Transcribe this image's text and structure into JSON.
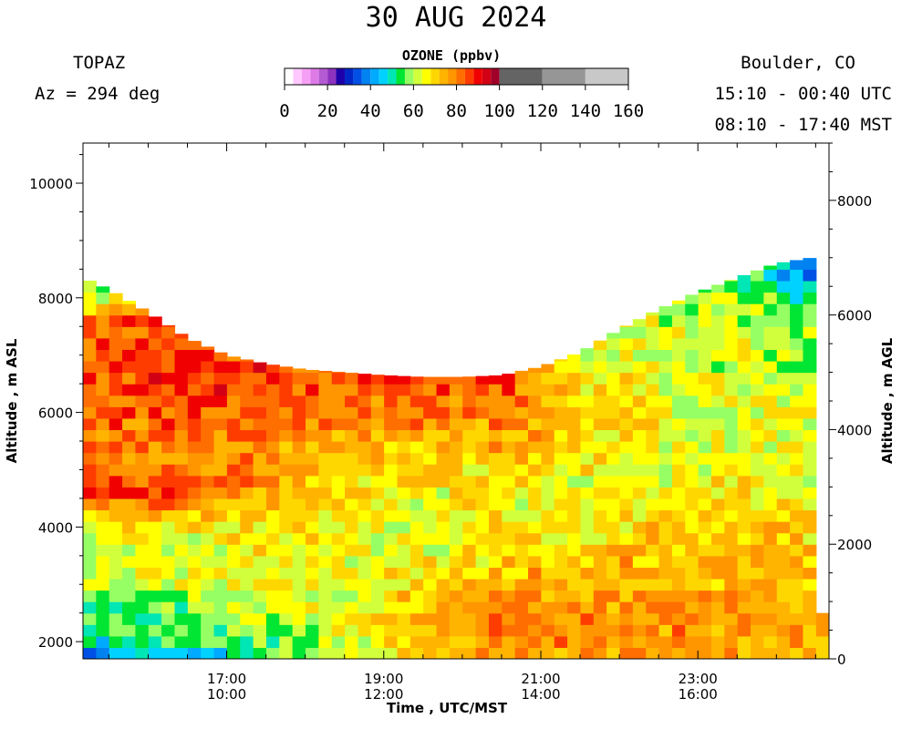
{
  "header": {
    "title": "30 AUG 2024",
    "instrument": "TOPAZ",
    "azimuth": "Az = 294 deg",
    "location": "Boulder, CO",
    "utc_range": "15:10 - 00:40 UTC",
    "mst_range": "08:10 - 17:40 MST"
  },
  "colorbar": {
    "title": "OZONE (ppbv)",
    "tick_labels": [
      "0",
      "20",
      "40",
      "60",
      "80",
      "100",
      "120",
      "140",
      "160"
    ],
    "ticks": [
      0,
      20,
      40,
      60,
      80,
      100,
      120,
      140,
      160
    ],
    "range": [
      0,
      160
    ],
    "bins": [
      {
        "lo": 0,
        "hi": 4,
        "color": "#ffffff"
      },
      {
        "lo": 4,
        "hi": 8,
        "color": "#ffc8ff"
      },
      {
        "lo": 8,
        "hi": 12,
        "color": "#f5a0f5"
      },
      {
        "lo": 12,
        "hi": 16,
        "color": "#dd7ae6"
      },
      {
        "lo": 16,
        "hi": 20,
        "color": "#b45ad2"
      },
      {
        "lo": 20,
        "hi": 24,
        "color": "#8c32be"
      },
      {
        "lo": 24,
        "hi": 28,
        "color": "#1e00aa"
      },
      {
        "lo": 28,
        "hi": 32,
        "color": "#0028c8"
      },
      {
        "lo": 32,
        "hi": 36,
        "color": "#0050e6"
      },
      {
        "lo": 36,
        "hi": 40,
        "color": "#0082f0"
      },
      {
        "lo": 40,
        "hi": 44,
        "color": "#00aaff"
      },
      {
        "lo": 44,
        "hi": 48,
        "color": "#00d2ff"
      },
      {
        "lo": 48,
        "hi": 52,
        "color": "#00e6b4"
      },
      {
        "lo": 52,
        "hi": 56,
        "color": "#00e632"
      },
      {
        "lo": 56,
        "hi": 60,
        "color": "#96ff64"
      },
      {
        "lo": 60,
        "hi": 64,
        "color": "#d2ff3c"
      },
      {
        "lo": 64,
        "hi": 68,
        "color": "#ffff00"
      },
      {
        "lo": 68,
        "hi": 72,
        "color": "#ffd700"
      },
      {
        "lo": 72,
        "hi": 76,
        "color": "#ffb400"
      },
      {
        "lo": 76,
        "hi": 80,
        "color": "#ff9600"
      },
      {
        "lo": 80,
        "hi": 84,
        "color": "#ff6e00"
      },
      {
        "lo": 84,
        "hi": 88,
        "color": "#ff3c00"
      },
      {
        "lo": 88,
        "hi": 92,
        "color": "#f00000"
      },
      {
        "lo": 92,
        "hi": 96,
        "color": "#d20014"
      },
      {
        "lo": 96,
        "hi": 100,
        "color": "#a00028"
      },
      {
        "lo": 100,
        "hi": 120,
        "color": "#646464"
      },
      {
        "lo": 120,
        "hi": 140,
        "color": "#969696"
      },
      {
        "lo": 140,
        "hi": 160,
        "color": "#c8c8c8"
      }
    ]
  },
  "chart_data": {
    "type": "heatmap",
    "title": "30 AUG 2024",
    "xlabel": "Time , UTC/MST",
    "ylabel": "Altitude , m ASL",
    "ylabel_right": "Altitude , m AGL",
    "x_range_utc_hours": [
      15.17,
      24.67
    ],
    "y_range_m_asl": [
      1700,
      10700
    ],
    "y2_offset_m": 1700,
    "x_ticks": [
      {
        "hour": 17,
        "label_utc": "17:00",
        "label_mst": "10:00"
      },
      {
        "hour": 19,
        "label_utc": "19:00",
        "label_mst": "12:00"
      },
      {
        "hour": 21,
        "label_utc": "21:00",
        "label_mst": "14:00"
      },
      {
        "hour": 23,
        "label_utc": "23:00",
        "label_mst": "16:00"
      }
    ],
    "y_ticks": [
      2000,
      4000,
      6000,
      8000,
      10000
    ],
    "y_tick_labels": [
      "2000",
      "4000",
      "6000",
      "8000",
      "10000"
    ],
    "y2_ticks": [
      0,
      2000,
      4000,
      6000,
      8000
    ],
    "y2_tick_labels": [
      "0",
      "2000",
      "4000",
      "6000",
      "8000"
    ],
    "column_width_hours": 0.1667,
    "cell_height_m": 200,
    "profile_top_m_asl": [
      {
        "t": 15.17,
        "top": 8350
      },
      {
        "t": 15.5,
        "top": 8150
      },
      {
        "t": 16.0,
        "top": 7750
      },
      {
        "t": 16.5,
        "top": 7300
      },
      {
        "t": 17.0,
        "top": 7000
      },
      {
        "t": 17.5,
        "top": 6850
      },
      {
        "t": 18.0,
        "top": 6750
      },
      {
        "t": 18.5,
        "top": 6700
      },
      {
        "t": 19.0,
        "top": 6650
      },
      {
        "t": 19.5,
        "top": 6620
      },
      {
        "t": 20.0,
        "top": 6620
      },
      {
        "t": 20.5,
        "top": 6650
      },
      {
        "t": 21.0,
        "top": 6800
      },
      {
        "t": 21.5,
        "top": 7050
      },
      {
        "t": 22.0,
        "top": 7450
      },
      {
        "t": 22.5,
        "top": 7800
      },
      {
        "t": 23.0,
        "top": 8100
      },
      {
        "t": 23.5,
        "top": 8350
      },
      {
        "t": 24.0,
        "top": 8600
      },
      {
        "t": 24.67,
        "top": 8750
      }
    ],
    "ozone_profiles_ppbv": [
      {
        "t": 15.5,
        "alt": [
          1800,
          2200,
          2600,
          3000,
          3400,
          4000,
          4600,
          5200,
          6000,
          6800,
          7600,
          8200
        ],
        "o3": [
          42,
          54,
          56,
          60,
          62,
          66,
          86,
          80,
          82,
          86,
          84,
          56
        ]
      },
      {
        "t": 16.5,
        "alt": [
          1800,
          2200,
          2600,
          3000,
          3400,
          4000,
          4600,
          5200,
          6000,
          6800,
          7200
        ],
        "o3": [
          46,
          54,
          58,
          62,
          64,
          68,
          84,
          80,
          84,
          88,
          84
        ]
      },
      {
        "t": 17.5,
        "alt": [
          1800,
          2200,
          2600,
          3000,
          3400,
          4000,
          4600,
          5200,
          6000,
          6600
        ],
        "o3": [
          54,
          58,
          62,
          64,
          66,
          68,
          76,
          78,
          82,
          86
        ]
      },
      {
        "t": 18.5,
        "alt": [
          1800,
          2200,
          2600,
          3000,
          3400,
          4000,
          4600,
          5200,
          6000,
          6600
        ],
        "o3": [
          60,
          62,
          64,
          64,
          66,
          66,
          68,
          72,
          80,
          84
        ]
      },
      {
        "t": 19.5,
        "alt": [
          1800,
          2200,
          2600,
          3000,
          3400,
          4000,
          4600,
          5200,
          6000,
          6500
        ],
        "o3": [
          72,
          74,
          74,
          70,
          66,
          64,
          66,
          70,
          80,
          84
        ]
      },
      {
        "t": 20.5,
        "alt": [
          1800,
          2200,
          2600,
          3000,
          3400,
          4000,
          4600,
          5200,
          6000,
          6500
        ],
        "o3": [
          78,
          80,
          78,
          76,
          70,
          66,
          66,
          72,
          80,
          86
        ]
      },
      {
        "t": 21.5,
        "alt": [
          1800,
          2200,
          2600,
          3000,
          3400,
          4000,
          4600,
          5200,
          6000,
          6800
        ],
        "o3": [
          78,
          80,
          78,
          76,
          72,
          66,
          64,
          68,
          72,
          66
        ]
      },
      {
        "t": 22.5,
        "alt": [
          1800,
          2200,
          2600,
          3000,
          3400,
          4000,
          4600,
          5200,
          6000,
          6800,
          7600
        ],
        "o3": [
          76,
          78,
          76,
          74,
          74,
          70,
          64,
          64,
          66,
          64,
          62
        ]
      },
      {
        "t": 23.5,
        "alt": [
          1800,
          2200,
          2600,
          3000,
          3400,
          4000,
          4600,
          5200,
          6000,
          6800,
          7600,
          8200
        ],
        "o3": [
          76,
          78,
          76,
          74,
          74,
          72,
          68,
          64,
          64,
          62,
          62,
          56
        ]
      },
      {
        "t": 24.4,
        "alt": [
          1800,
          2200,
          2600,
          3000,
          3400,
          4000,
          4600,
          5200,
          6000,
          6800,
          7600,
          8400
        ],
        "o3": [
          74,
          76,
          74,
          72,
          72,
          70,
          66,
          64,
          64,
          60,
          58,
          42
        ]
      }
    ],
    "no_data_after_utc": 24.55,
    "no_data_below_m_asl": 2450
  }
}
